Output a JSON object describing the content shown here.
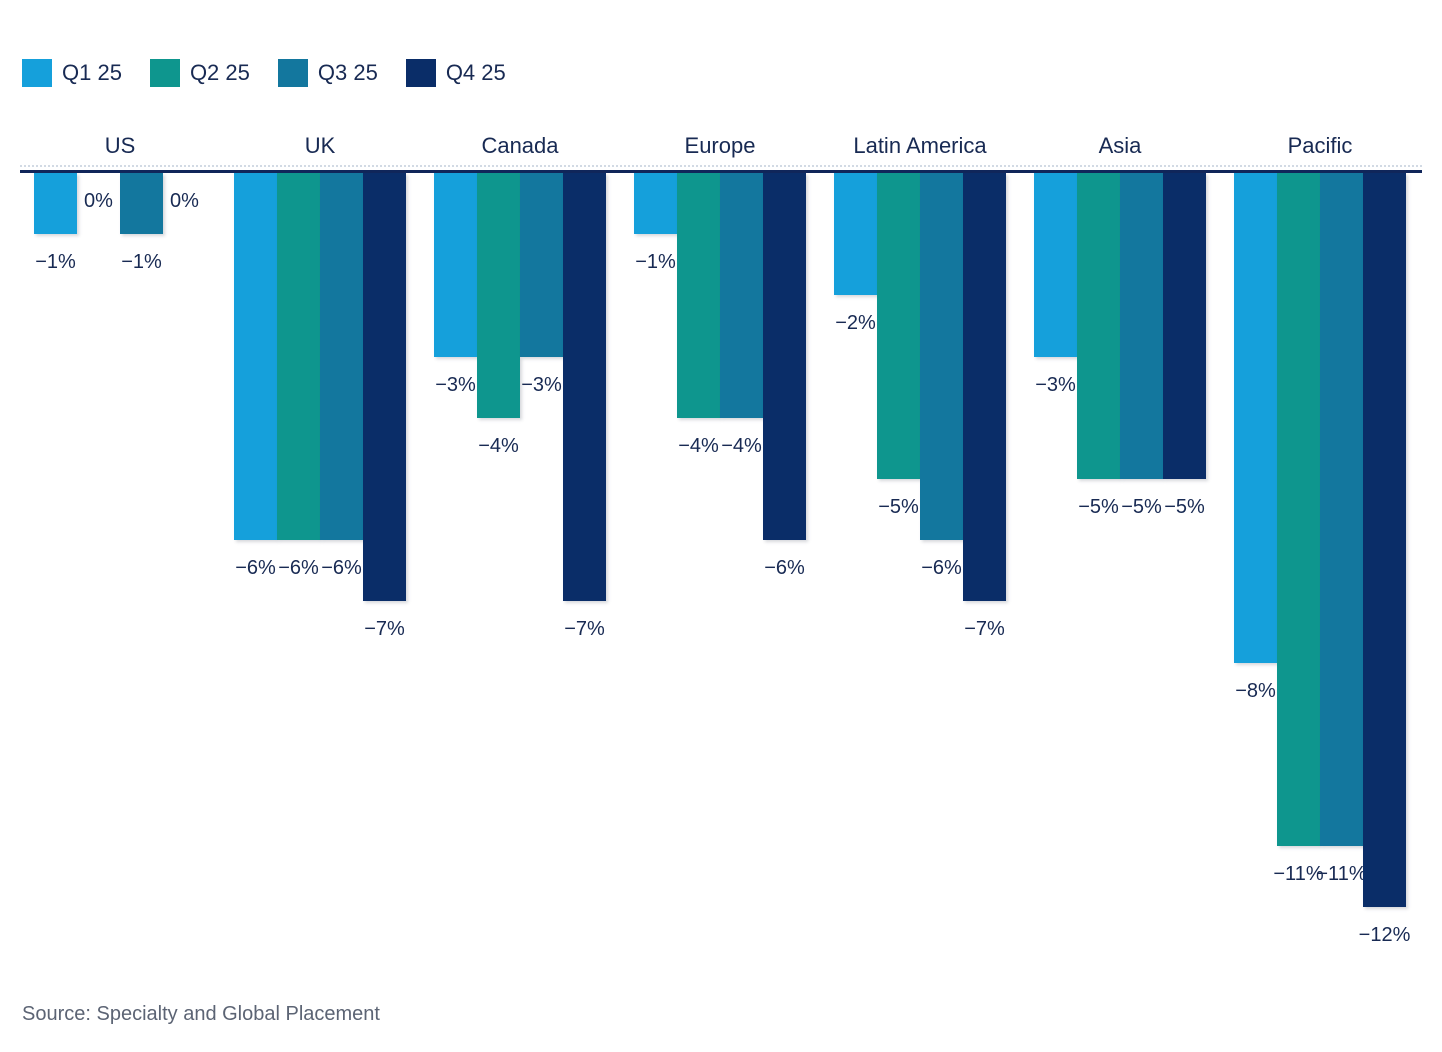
{
  "colors": {
    "background": "#ffffff",
    "text": "#182A53",
    "axis_line": "#10265A",
    "zero_gridline_dotted": "#D2DAE4",
    "source_text": "#5C6474"
  },
  "chart_data": {
    "type": "bar",
    "orientation": "vertical",
    "categories": [
      "US",
      "UK",
      "Canada",
      "Europe",
      "Latin America",
      "Asia",
      "Pacific"
    ],
    "series": [
      {
        "name": "Q1 25",
        "color": "#15A0DB",
        "values": [
          -1,
          -6,
          -3,
          -1,
          -2,
          -3,
          -8
        ],
        "labels": [
          "−1%",
          "−6%",
          "−3%",
          "−1%",
          "−2%",
          "−3%",
          "−8%"
        ]
      },
      {
        "name": "Q2 25",
        "color": "#0E968E",
        "values": [
          0,
          -6,
          -4,
          -4,
          -5,
          -5,
          -11
        ],
        "labels": [
          "0%",
          "−6%",
          "−4%",
          "−4%",
          "−5%",
          "−5%",
          "−11%"
        ]
      },
      {
        "name": "Q3 25",
        "color": "#13779E",
        "values": [
          -1,
          -6,
          -3,
          -4,
          -6,
          -5,
          -11
        ],
        "labels": [
          "−1%",
          "−6%",
          "−3%",
          "−4%",
          "−6%",
          "−5%",
          "−11%"
        ]
      },
      {
        "name": "Q4 25",
        "color": "#0A2D68",
        "values": [
          0,
          -7,
          -7,
          -6,
          -7,
          -5,
          -12
        ],
        "labels": [
          "0%",
          "−7%",
          "−7%",
          "−6%",
          "−7%",
          "−5%",
          "−12%"
        ]
      }
    ],
    "title": "",
    "xlabel": "",
    "ylabel": "",
    "unit": "%",
    "ylim": [
      -12,
      0
    ],
    "grid": false,
    "value_labels_shown": true,
    "legend_position": "top-left"
  },
  "footer": {
    "source": "Source: Specialty and Global Placement"
  }
}
